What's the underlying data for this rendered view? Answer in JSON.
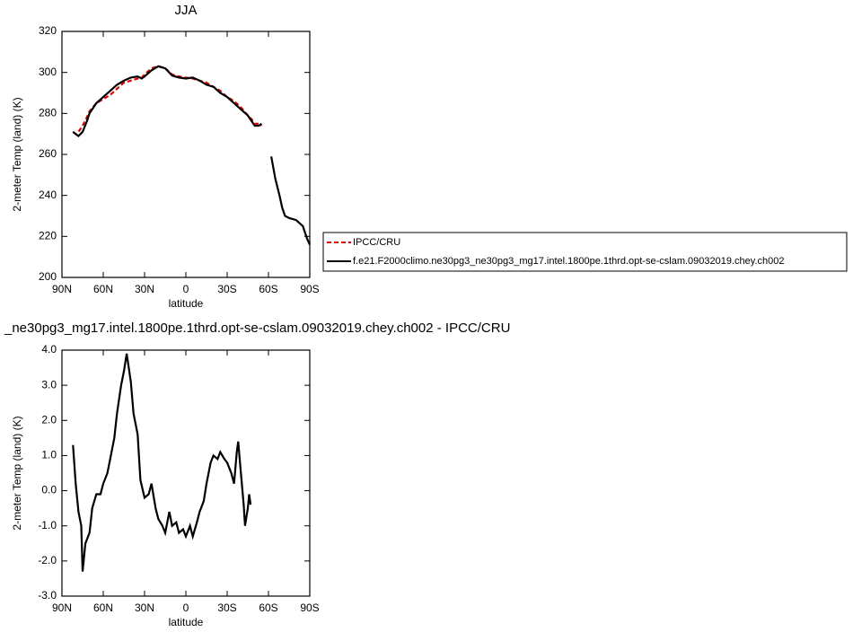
{
  "chart_data": [
    {
      "type": "line",
      "title": "JJA",
      "x_label": "latitude",
      "y_label": "2-meter Temp (land) (K)",
      "x": [
        82,
        80,
        78,
        75,
        72,
        70,
        65,
        60,
        55,
        50,
        45,
        40,
        35,
        32,
        30,
        25,
        20,
        15,
        10,
        5,
        0,
        -5,
        -10,
        -15,
        -20,
        -25,
        -30,
        -35,
        -40,
        -45,
        -48,
        -50,
        -53,
        -55,
        -58,
        -62,
        -65,
        -68,
        -70,
        -72,
        -75,
        -80,
        -85,
        -88,
        -90
      ],
      "xlim": [
        90,
        -90
      ],
      "xticks": [
        {
          "value": 90,
          "label": "90N"
        },
        {
          "value": 60,
          "label": "60N"
        },
        {
          "value": 30,
          "label": "30N"
        },
        0,
        {
          "value": -30,
          "label": "30S"
        },
        {
          "value": -60,
          "label": "60S"
        },
        {
          "value": -90,
          "label": "90S"
        }
      ],
      "ylim": [
        200,
        320
      ],
      "yticks": [
        200,
        220,
        240,
        260,
        280,
        300,
        320
      ],
      "legend": "right",
      "series": [
        {
          "name": "IPCC/CRU",
          "color": "#e00000",
          "dashed": true,
          "values": [
            271,
            270,
            271,
            274,
            278,
            281,
            285,
            287,
            289,
            292,
            295,
            296,
            297,
            297.5,
            299,
            302,
            303,
            302,
            299,
            298,
            297.5,
            297,
            296,
            295,
            293,
            291,
            288,
            286,
            283,
            279,
            277,
            275,
            275,
            274,
            null,
            null,
            null,
            null,
            null,
            null,
            null,
            null,
            null,
            null,
            null
          ]
        },
        {
          "name": "f.e21.F2000climo.ne30pg3_ne30pg3_mg17.intel.1800pe.1thrd.opt-se-cslam.09032019.chey.ch002",
          "color": "#000000",
          "dashed": false,
          "values": [
            271,
            270,
            269,
            271,
            276,
            280,
            285,
            288,
            291,
            294,
            296,
            297.5,
            298,
            297,
            298,
            301,
            303,
            302,
            298.5,
            297.5,
            297,
            297.5,
            296,
            294,
            293,
            290,
            288,
            285,
            282,
            279,
            276,
            274,
            274,
            275,
            null,
            259,
            248,
            240,
            234,
            230,
            229,
            228,
            225,
            219,
            216
          ]
        }
      ]
    },
    {
      "type": "line",
      "title": "_ne30pg3_mg17.intel.1800pe.1thrd.opt-se-cslam.09032019.chey.ch002 - IPCC/CRU",
      "x_label": "latitude",
      "y_label": "2-meter Temp (land) (K)",
      "x": [
        82,
        80,
        78,
        76,
        75,
        73,
        70,
        68,
        65,
        62,
        60,
        57,
        55,
        52,
        50,
        47,
        45,
        43,
        40,
        38,
        35,
        33,
        30,
        27,
        25,
        22,
        20,
        17,
        15,
        12,
        10,
        7,
        5,
        2,
        0,
        -3,
        -5,
        -8,
        -10,
        -13,
        -15,
        -18,
        -20,
        -23,
        -25,
        -28,
        -30,
        -33,
        -35,
        -37,
        -38,
        -40,
        -42,
        -43,
        -45,
        -46,
        -47
      ],
      "xlim": [
        90,
        -90
      ],
      "xticks": [
        {
          "value": 90,
          "label": "90N"
        },
        {
          "value": 60,
          "label": "60N"
        },
        {
          "value": 30,
          "label": "30N"
        },
        0,
        {
          "value": -30,
          "label": "30S"
        },
        {
          "value": -60,
          "label": "60S"
        },
        {
          "value": -90,
          "label": "90S"
        }
      ],
      "ylim": [
        -3,
        4
      ],
      "yticks": [
        {
          "value": -3,
          "label": "-3.0"
        },
        {
          "value": -2,
          "label": "-2.0"
        },
        {
          "value": -1,
          "label": "-1.0"
        },
        {
          "value": 0,
          "label": "0.0"
        },
        {
          "value": 1,
          "label": "1.0"
        },
        {
          "value": 2,
          "label": "2.0"
        },
        {
          "value": 3,
          "label": "3.0"
        },
        {
          "value": 4,
          "label": "4.0"
        }
      ],
      "series": [
        {
          "color": "#000000",
          "dashed": false,
          "values": [
            1.3,
            0.2,
            -0.6,
            -1.0,
            -2.3,
            -1.5,
            -1.2,
            -0.5,
            -0.1,
            -0.1,
            0.2,
            0.5,
            0.9,
            1.5,
            2.2,
            3.0,
            3.4,
            3.9,
            3.1,
            2.2,
            1.6,
            0.3,
            -0.2,
            -0.1,
            0.2,
            -0.5,
            -0.8,
            -1.0,
            -1.2,
            -0.6,
            -1.0,
            -0.9,
            -1.2,
            -1.1,
            -1.3,
            -1.0,
            -1.3,
            -0.9,
            -0.6,
            -0.3,
            0.2,
            0.8,
            1.0,
            0.9,
            1.1,
            0.9,
            0.8,
            0.5,
            0.2,
            1.1,
            1.4,
            0.5,
            -0.4,
            -1.0,
            -0.5,
            -0.1,
            -0.4
          ]
        }
      ]
    }
  ]
}
